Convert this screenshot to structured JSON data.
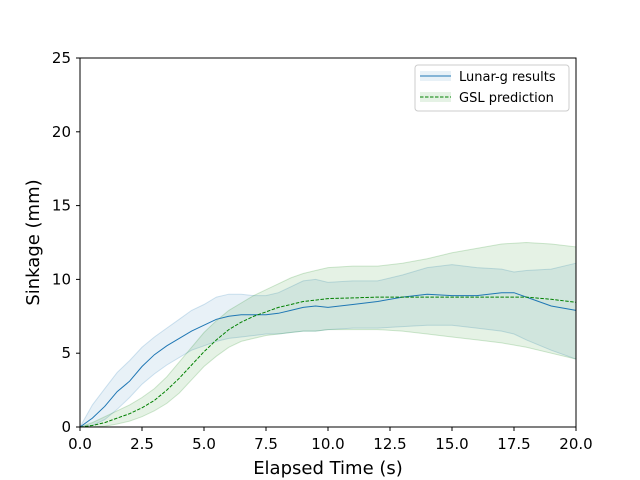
{
  "chart_data": {
    "type": "line",
    "xlabel": "Elapsed Time (s)",
    "ylabel": "Sinkage (mm)",
    "xlim": [
      0,
      20
    ],
    "ylim": [
      0,
      25
    ],
    "xticks": [
      "0.0",
      "2.5",
      "5.0",
      "7.5",
      "10.0",
      "12.5",
      "15.0",
      "17.5",
      "20.0"
    ],
    "yticks": [
      "0",
      "5",
      "10",
      "15",
      "20",
      "25"
    ],
    "grid": false,
    "legend_position": "top-right",
    "series": [
      {
        "name": "Lunar-g results",
        "color": "#1f77b4",
        "style": "solid",
        "x": [
          0,
          0.5,
          1,
          1.5,
          2,
          2.5,
          3,
          3.5,
          4,
          4.5,
          5,
          5.5,
          6,
          6.5,
          7,
          7.5,
          8,
          8.5,
          9,
          9.5,
          10,
          11,
          12,
          13,
          14,
          15,
          16,
          17,
          17.5,
          18,
          19,
          20
        ],
        "y": [
          0,
          0.6,
          1.4,
          2.4,
          3.1,
          4.1,
          4.9,
          5.5,
          6.0,
          6.5,
          6.9,
          7.3,
          7.5,
          7.6,
          7.6,
          7.6,
          7.7,
          7.9,
          8.1,
          8.2,
          8.1,
          8.3,
          8.5,
          8.8,
          9.0,
          8.9,
          8.9,
          9.1,
          9.1,
          8.8,
          8.2,
          7.9
        ],
        "lower": [
          0,
          0.1,
          0.5,
          1.2,
          2.0,
          2.9,
          3.6,
          4.2,
          4.7,
          5.2,
          5.5,
          5.8,
          6.0,
          6.1,
          6.2,
          6.3,
          6.3,
          6.4,
          6.5,
          6.5,
          6.6,
          6.7,
          6.7,
          6.8,
          6.9,
          6.9,
          6.7,
          6.5,
          6.3,
          5.9,
          5.2,
          4.6
        ],
        "upper": [
          0,
          1.5,
          2.6,
          3.7,
          4.5,
          5.4,
          6.1,
          6.7,
          7.3,
          7.9,
          8.3,
          8.8,
          9.0,
          9.0,
          8.9,
          8.9,
          9.1,
          9.5,
          9.9,
          10.0,
          9.8,
          9.9,
          9.9,
          10.3,
          10.8,
          11.0,
          10.8,
          10.7,
          10.5,
          10.6,
          10.7,
          11.1
        ]
      },
      {
        "name": "GSL prediction",
        "color": "#008000",
        "style": "dashed",
        "x": [
          0,
          0.5,
          1,
          1.5,
          2,
          2.5,
          3,
          3.5,
          4,
          4.5,
          5,
          5.5,
          6,
          6.5,
          7,
          7.5,
          8,
          8.5,
          9,
          9.5,
          10,
          11,
          12,
          13,
          14,
          15,
          16,
          17,
          18,
          19,
          20
        ],
        "y": [
          0,
          0.1,
          0.3,
          0.6,
          0.9,
          1.3,
          1.8,
          2.5,
          3.3,
          4.2,
          5.1,
          5.9,
          6.6,
          7.1,
          7.5,
          7.8,
          8.1,
          8.3,
          8.5,
          8.6,
          8.7,
          8.75,
          8.8,
          8.8,
          8.8,
          8.8,
          8.8,
          8.8,
          8.8,
          8.65,
          8.45
        ],
        "lower": [
          0,
          0,
          0.05,
          0.2,
          0.4,
          0.7,
          1.1,
          1.6,
          2.3,
          3.2,
          4.1,
          4.8,
          5.4,
          5.8,
          6.0,
          6.2,
          6.3,
          6.4,
          6.5,
          6.5,
          6.6,
          6.6,
          6.6,
          6.5,
          6.3,
          6.1,
          5.9,
          5.7,
          5.4,
          5.0,
          4.6
        ],
        "upper": [
          0,
          0.3,
          0.7,
          1.1,
          1.5,
          2.0,
          2.6,
          3.4,
          4.4,
          5.4,
          6.4,
          7.2,
          7.9,
          8.4,
          8.9,
          9.3,
          9.7,
          10.1,
          10.4,
          10.6,
          10.8,
          10.9,
          10.9,
          11.1,
          11.4,
          11.8,
          12.1,
          12.4,
          12.5,
          12.4,
          12.2
        ]
      }
    ]
  }
}
